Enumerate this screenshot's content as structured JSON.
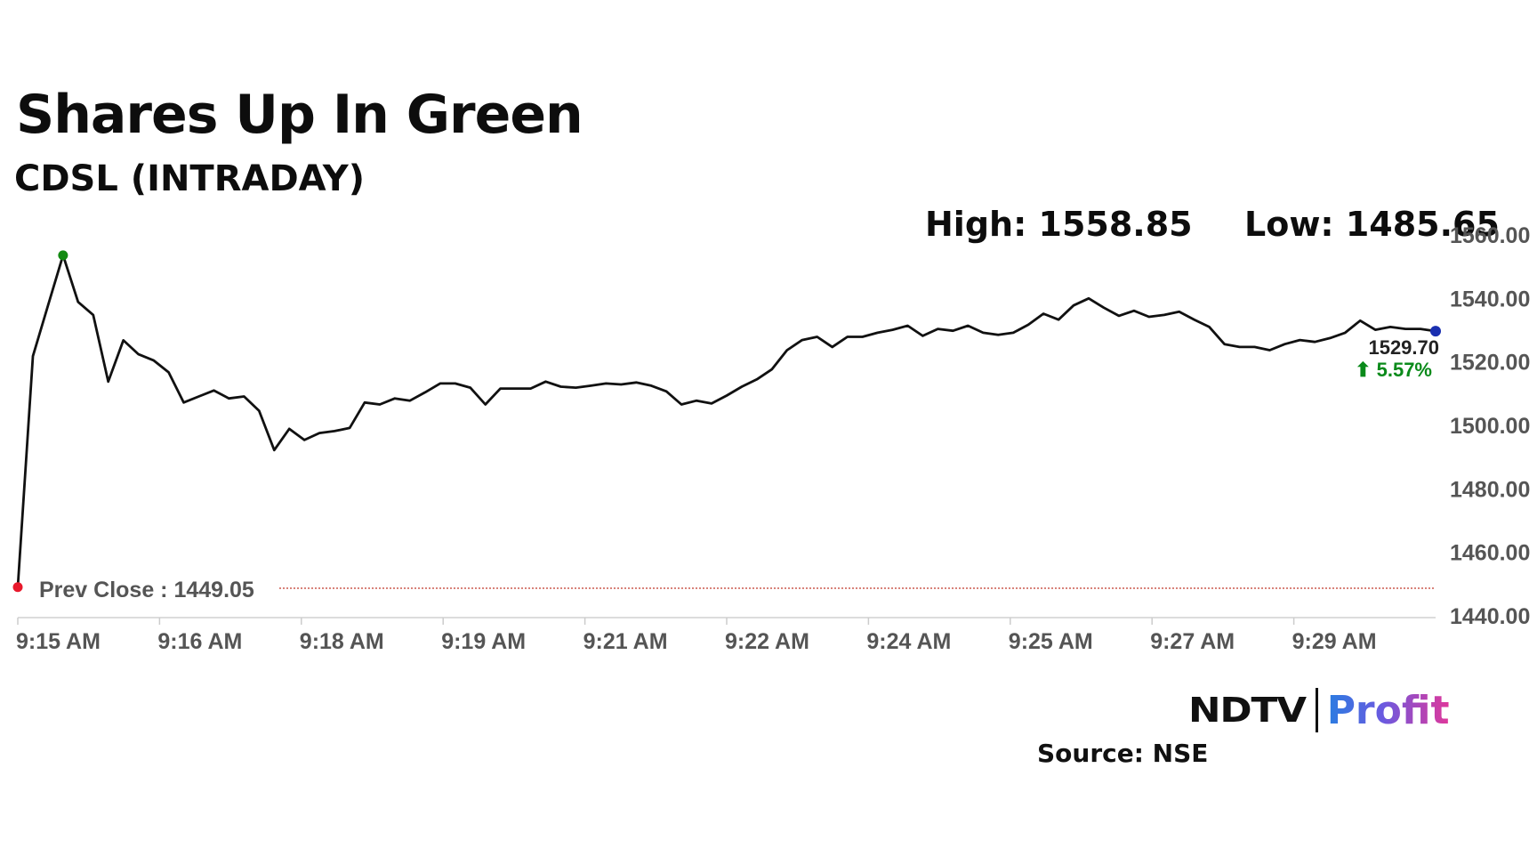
{
  "header": {
    "title": "Shares Up In Green",
    "subtitle": "CDSL (INTRADAY)"
  },
  "stats": {
    "high": "High: 1558.85",
    "low": "Low: 1485.65"
  },
  "last_price": "1529.70",
  "change": "⬆ 5.57%",
  "prev_close_label": "Prev Close : 1449.05",
  "logo": {
    "ndtv": "NDTV",
    "profit": "Profit"
  },
  "source": "Source: NSE",
  "colors": {
    "line": "#111111",
    "high_marker": "#138a12",
    "prev_close": "#e8192c",
    "last_marker": "#1a2fb0",
    "change": "#0a8a1a"
  },
  "chart_data": {
    "type": "line",
    "title": "CDSL (INTRADAY)",
    "x_ticks": [
      "9:15 AM",
      "9:16 AM",
      "9:18 AM",
      "9:19 AM",
      "9:21 AM",
      "9:22 AM",
      "9:24 AM",
      "9:25 AM",
      "9:27 AM",
      "9:29 AM"
    ],
    "y_ticks": [
      "1440.00",
      "1460.00",
      "1480.00",
      "1500.00",
      "1520.00",
      "1540.00",
      "1560.00"
    ],
    "ylim": [
      1440,
      1560
    ],
    "prev_close": 1449.05,
    "high": 1558.85,
    "low": 1485.65,
    "last": 1529.7,
    "change_pct": 5.57,
    "grid": false,
    "series": [
      {
        "values": [
          1449.05,
          1521.8,
          1537.7,
          1553.6,
          1538.9,
          1534.8,
          1513.8,
          1526.8,
          1522.4,
          1520.5,
          1516.7,
          1507.2,
          1509.1,
          1511.0,
          1508.5,
          1509.1,
          1504.6,
          1492.2,
          1498.9,
          1495.4,
          1497.6,
          1498.2,
          1499.2,
          1507.2,
          1506.6,
          1508.5,
          1507.8,
          1510.4,
          1513.2,
          1513.2,
          1511.9,
          1506.6,
          1511.6,
          1511.6,
          1511.6,
          1513.8,
          1512.2,
          1511.9,
          1512.5,
          1513.2,
          1512.9,
          1513.5,
          1512.5,
          1510.7,
          1506.6,
          1507.8,
          1506.9,
          1509.4,
          1512.2,
          1514.5,
          1517.7,
          1523.7,
          1526.9,
          1527.9,
          1524.7,
          1527.9,
          1527.9,
          1529.2,
          1530.1,
          1531.4,
          1528.2,
          1530.4,
          1529.8,
          1531.4,
          1529.2,
          1528.5,
          1529.2,
          1531.7,
          1535.2,
          1533.3,
          1537.8,
          1540.0,
          1537.1,
          1534.5,
          1536.1,
          1534.2,
          1534.8,
          1535.8,
          1533.3,
          1531.0,
          1525.6,
          1524.7,
          1524.7,
          1523.7,
          1525.6,
          1526.9,
          1526.3,
          1527.5,
          1529.2,
          1533.0,
          1530.1,
          1531.0,
          1530.4,
          1530.4,
          1529.7
        ]
      }
    ]
  }
}
